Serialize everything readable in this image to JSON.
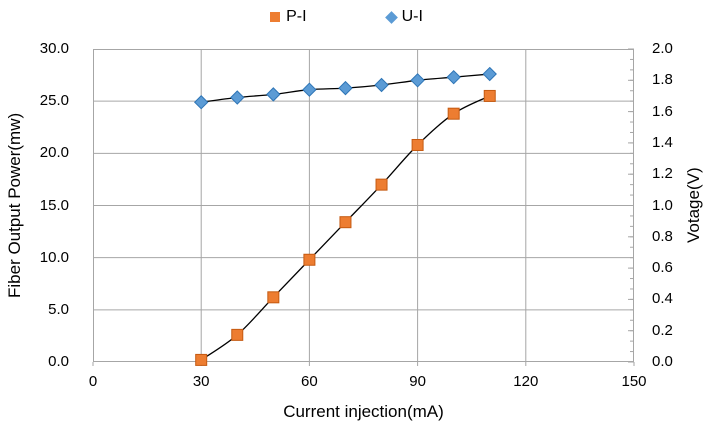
{
  "legend": {
    "items": [
      {
        "label": "P-I",
        "marker": "square",
        "color": "#ED7D31"
      },
      {
        "label": "U-I",
        "marker": "diamond",
        "color": "#5B9BD5"
      }
    ]
  },
  "chart_data": {
    "type": "line",
    "x": [
      30,
      40,
      50,
      60,
      70,
      80,
      90,
      100,
      110
    ],
    "series": [
      {
        "name": "P-I",
        "axis": "left",
        "marker": "square",
        "color": "#ED7D31",
        "border_color": "#C55A11",
        "values": [
          0.2,
          2.6,
          6.2,
          9.8,
          13.4,
          17.0,
          20.8,
          23.8,
          25.5
        ]
      },
      {
        "name": "U-I",
        "axis": "right",
        "marker": "diamond",
        "color": "#5B9BD5",
        "border_color": "#2E75B6",
        "values": [
          1.66,
          1.69,
          1.71,
          1.74,
          1.75,
          1.77,
          1.8,
          1.82,
          1.84
        ]
      }
    ],
    "x_axis": {
      "label": "Current injection(mA)",
      "min": 0,
      "max": 150,
      "tick_interval": 30,
      "ticks": [
        "0",
        "30",
        "60",
        "90",
        "120",
        "150"
      ]
    },
    "y_axis_left": {
      "label": "Fiber Output Power(mw)",
      "min": 0,
      "max": 30,
      "tick_interval": 5,
      "ticks": [
        "0.0",
        "5.0",
        "10.0",
        "15.0",
        "20.0",
        "25.0",
        "30.0"
      ]
    },
    "y_axis_right": {
      "label": "Votage(V)",
      "min": 0,
      "max": 2,
      "tick_interval": 0.2,
      "minor_tick_count": 30,
      "ticks": [
        "0.0",
        "0.2",
        "0.4",
        "0.6",
        "0.8",
        "1.0",
        "1.2",
        "1.4",
        "1.6",
        "1.8",
        "2.0"
      ]
    },
    "grid_on": true,
    "legend_position": "top-center",
    "line_color": "#000000",
    "grid_color": "#A6A6A6"
  }
}
